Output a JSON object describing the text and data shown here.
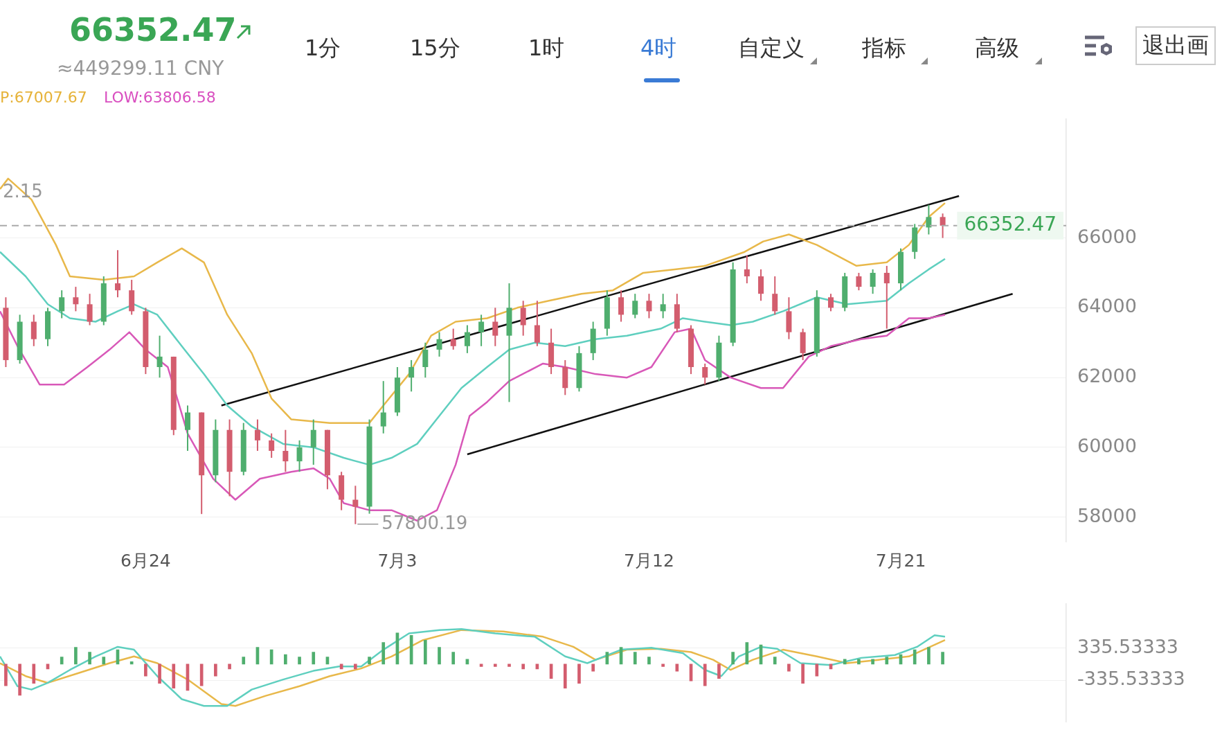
{
  "chart_data": [
    {
      "type": "candlestick",
      "title": "66352.47",
      "subtitle": "≈449299.11 CNY",
      "annotations": [
        "P:67007.67",
        "LOW:63806.58",
        "1分",
        "15分",
        "1时",
        "4时",
        "自定义",
        "指标",
        "高级",
        "退出画",
        {
          "text": "2.15",
          "x": "--06-18T19:00",
          "y": 67300
        },
        {
          "text": "57800.19",
          "x": "--07-01T12:00",
          "y": 57800.19
        }
      ],
      "x": [
        "--06-19T00:00",
        "--06-19T12:00",
        "--06-20T00:00",
        "--06-20T12:00",
        "--06-21T00:00",
        "--06-21T12:00",
        "--06-22T00:00",
        "--06-22T12:00",
        "--06-23T00:00",
        "--06-23T12:00",
        "--06-24T00:00",
        "--06-24T12:00",
        "--06-25T00:00",
        "--06-25T12:00",
        "--06-26T00:00",
        "--06-26T12:00",
        "--06-27T00:00",
        "--06-27T12:00",
        "--06-28T00:00",
        "--06-28T12:00",
        "--06-29T00:00",
        "--06-29T12:00",
        "--06-30T00:00",
        "--06-30T12:00",
        "--07-01T00:00",
        "--07-01T12:00",
        "--07-02T00:00",
        "--07-02T12:00",
        "--07-03T00:00",
        "--07-03T12:00",
        "--07-04T00:00",
        "--07-04T12:00",
        "--07-05T00:00",
        "--07-05T12:00",
        "--07-06T00:00",
        "--07-06T12:00",
        "--07-07T00:00",
        "--07-07T12:00",
        "--07-08T00:00",
        "--07-08T12:00",
        "--07-09T00:00",
        "--07-09T12:00",
        "--07-10T00:00",
        "--07-10T12:00",
        "--07-11T00:00",
        "--07-11T12:00",
        "--07-12T00:00",
        "--07-12T12:00",
        "--07-13T00:00",
        "--07-13T12:00",
        "--07-14T00:00",
        "--07-14T12:00",
        "--07-15T00:00",
        "--07-15T12:00",
        "--07-16T00:00",
        "--07-16T12:00",
        "--07-17T00:00",
        "--07-17T12:00",
        "--07-18T00:00",
        "--07-18T12:00",
        "--07-19T00:00",
        "--07-19T12:00",
        "--07-20T00:00",
        "--07-20T12:00",
        "--07-21T00:00",
        "--07-21T12:00",
        "--07-22T00:00",
        "--07-22T12:00"
      ],
      "ohlc": [
        [
          64000,
          64300,
          62300,
          62500
        ],
        [
          62500,
          63800,
          62400,
          63600
        ],
        [
          63600,
          63800,
          62900,
          63100
        ],
        [
          63100,
          64000,
          62900,
          63900
        ],
        [
          63900,
          64500,
          63700,
          64300
        ],
        [
          64300,
          64600,
          63900,
          64100
        ],
        [
          64100,
          64400,
          63500,
          63600
        ],
        [
          63600,
          64900,
          63500,
          64700
        ],
        [
          64700,
          65650,
          64300,
          64500
        ],
        [
          64500,
          64800,
          63800,
          63900
        ],
        [
          63900,
          64000,
          62100,
          62300
        ],
        [
          62300,
          63200,
          62000,
          62600
        ],
        [
          62600,
          62600,
          60350,
          60500
        ],
        [
          60500,
          61200,
          59900,
          61000
        ],
        [
          61000,
          61000,
          58090,
          59200
        ],
        [
          59200,
          60800,
          59000,
          60500
        ],
        [
          60500,
          60800,
          58600,
          59300
        ],
        [
          59300,
          60700,
          59200,
          60500
        ],
        [
          60500,
          60800,
          59900,
          60200
        ],
        [
          60200,
          60400,
          59700,
          59900
        ],
        [
          59900,
          60500,
          59300,
          59600
        ],
        [
          59600,
          60200,
          59300,
          60000
        ],
        [
          60000,
          60800,
          59500,
          60500
        ],
        [
          60500,
          60500,
          58800,
          59200
        ],
        [
          59200,
          59300,
          58200,
          58500
        ],
        [
          58500,
          58900,
          57800.19,
          58300
        ],
        [
          58300,
          60800,
          58100,
          60600
        ],
        [
          60600,
          61900,
          60400,
          61000
        ],
        [
          61000,
          62300,
          60900,
          62000
        ],
        [
          62000,
          62500,
          61600,
          62300
        ],
        [
          62300,
          63000,
          62000,
          62800
        ],
        [
          62800,
          63300,
          62600,
          63100
        ],
        [
          63100,
          63400,
          62800,
          62900
        ],
        [
          62900,
          63500,
          62700,
          63300
        ],
        [
          63300,
          63800,
          62900,
          63600
        ],
        [
          63600,
          64000,
          62900,
          63200
        ],
        [
          63200,
          64700,
          61300,
          64000
        ],
        [
          64000,
          64200,
          63200,
          63500
        ],
        [
          63500,
          64200,
          62900,
          63000
        ],
        [
          63000,
          63400,
          62100,
          62300
        ],
        [
          62300,
          62500,
          61500,
          61700
        ],
        [
          61700,
          62900,
          61600,
          62700
        ],
        [
          62700,
          63600,
          62500,
          63400
        ],
        [
          63400,
          64500,
          63200,
          64300
        ],
        [
          64300,
          64500,
          63600,
          63800
        ],
        [
          63800,
          64400,
          63700,
          64200
        ],
        [
          64200,
          64400,
          63700,
          63900
        ],
        [
          63900,
          64400,
          63700,
          64100
        ],
        [
          64100,
          64400,
          63300,
          63400
        ],
        [
          63400,
          63500,
          62100,
          62300
        ],
        [
          62300,
          62400,
          61800,
          62000
        ],
        [
          62000,
          63200,
          61900,
          63000
        ],
        [
          63000,
          65300,
          62900,
          65100
        ],
        [
          65100,
          65500,
          64700,
          64900
        ],
        [
          64900,
          65100,
          64200,
          64400
        ],
        [
          64400,
          64900,
          63800,
          63900
        ],
        [
          63900,
          64300,
          63100,
          63300
        ],
        [
          63300,
          63400,
          62500,
          62700
        ],
        [
          62700,
          64500,
          62600,
          64300
        ],
        [
          64300,
          64400,
          63900,
          64000
        ],
        [
          64000,
          65000,
          63900,
          64900
        ],
        [
          64900,
          65000,
          64500,
          64600
        ],
        [
          64600,
          65100,
          64400,
          65000
        ],
        [
          65000,
          65200,
          63400,
          64700
        ],
        [
          64700,
          65700,
          64500,
          65600
        ],
        [
          65600,
          66400,
          65400,
          66300
        ],
        [
          66300,
          66950,
          66100,
          66600
        ],
        [
          66600,
          66700,
          66000,
          66352.47
        ]
      ],
      "colors": [
        "#d35d6e",
        "#4fae6e",
        "#d35d6e",
        "#4fae6e",
        "#4fae6e",
        "#d35d6e",
        "#d35d6e",
        "#4fae6e",
        "#d35d6e",
        "#d35d6e",
        "#d35d6e",
        "#4fae6e",
        "#d35d6e",
        "#4fae6e",
        "#d35d6e",
        "#4fae6e",
        "#d35d6e",
        "#4fae6e",
        "#d35d6e",
        "#d35d6e",
        "#d35d6e",
        "#4fae6e",
        "#4fae6e",
        "#d35d6e",
        "#d35d6e",
        "#d35d6e",
        "#4fae6e",
        "#4fae6e",
        "#4fae6e",
        "#4fae6e",
        "#4fae6e",
        "#4fae6e",
        "#d35d6e",
        "#4fae6e",
        "#4fae6e",
        "#d35d6e",
        "#4fae6e",
        "#d35d6e",
        "#d35d6e",
        "#d35d6e",
        "#d35d6e",
        "#4fae6e",
        "#4fae6e",
        "#4fae6e",
        "#d35d6e",
        "#4fae6e",
        "#d35d6e",
        "#4fae6e",
        "#d35d6e",
        "#d35d6e",
        "#d35d6e",
        "#4fae6e",
        "#4fae6e",
        "#d35d6e",
        "#d35d6e",
        "#d35d6e",
        "#d35d6e",
        "#d35d6e",
        "#4fae6e",
        "#d35d6e",
        "#4fae6e",
        "#d35d6e",
        "#4fae6e",
        "#d35d6e",
        "#4fae6e",
        "#4fae6e",
        "#4fae6e",
        "#d35d6e"
      ],
      "series": [
        {
          "type": "line",
          "color": "#e8b84a",
          "x": [
            "--06-18T19:00",
            "--06-19T02:00",
            "--06-19T22:00",
            "--06-20T19:00",
            "--06-21T07:00",
            "--06-22T12:00",
            "--06-23T14:00",
            "--06-24T10:00",
            "--06-25T07:00",
            "--06-26T02:00",
            "--06-26T22:00",
            "--06-27T19:00",
            "--06-28T12:00",
            "--06-29T05:00",
            "--06-30T14:00",
            "--07-02T00:00",
            "--07-02T12:00",
            "--07-03T10:00",
            "--07-04T05:00",
            "--07-05T02:00",
            "--07-06T05:00",
            "--07-07T07:00",
            "--07-08T10:00",
            "--07-09T14:00",
            "--07-10T17:00",
            "--07-11T19:00",
            "--07-12T22:00",
            "--07-14T00:00",
            "--07-15T10:00",
            "--07-16T02:00",
            "--07-17T00:00",
            "--07-18T00:00",
            "--07-19T10:00",
            "--07-20T12:00",
            "--07-21T07:00",
            "--07-22T00:00",
            "--07-22T14:00"
          ],
          "values": [
            67400,
            67700,
            67100,
            65800,
            64900,
            64800,
            64900,
            65300,
            65700,
            65300,
            63800,
            62700,
            61400,
            60800,
            60700,
            60700,
            61200,
            62100,
            63200,
            63600,
            63700,
            64000,
            64200,
            64400,
            64500,
            65000,
            65100,
            65200,
            65600,
            65900,
            66100,
            65800,
            65200,
            65300,
            65800,
            66600,
            67000
          ]
        },
        {
          "type": "line",
          "color": "#5fcfbf",
          "x": [
            "--06-18T19:00",
            "--06-19T17:00",
            "--06-20T12:00",
            "--06-21T07:00",
            "--06-22T05:00",
            "--06-23T00:00",
            "--06-23T14:00",
            "--06-24T10:00",
            "--06-25T07:00",
            "--06-26T02:00",
            "--06-26T22:00",
            "--06-27T19:00",
            "--06-28T22:00",
            "--06-30T00:00",
            "--07-01T02:00",
            "--07-02T00:00",
            "--07-02T19:00",
            "--07-03T17:00",
            "--07-04T12:00",
            "--07-05T07:00",
            "--07-06T05:00",
            "--07-07T00:00",
            "--07-07T22:00",
            "--07-09T00:00",
            "--07-10T02:00",
            "--07-11T05:00",
            "--07-12T10:00",
            "--07-13T05:00",
            "--07-14T00:00",
            "--07-14T22:00",
            "--07-15T17:00",
            "--07-16T19:00",
            "--07-18T00:00",
            "--07-19T02:00",
            "--07-20T12:00",
            "--07-21T07:00",
            "--07-22T00:00",
            "--07-22T14:00"
          ],
          "values": [
            65600,
            64900,
            64100,
            63700,
            63600,
            63900,
            64100,
            63800,
            62900,
            62100,
            61200,
            60600,
            60100,
            60000,
            59700,
            59500,
            59700,
            60100,
            60900,
            61700,
            62300,
            62800,
            63000,
            62900,
            63100,
            63200,
            63400,
            63700,
            63600,
            63500,
            63600,
            63900,
            64300,
            64100,
            64200,
            64700,
            65100,
            65400
          ]
        },
        {
          "type": "line",
          "color": "#d858b8",
          "x": [
            "--06-18T19:00",
            "--06-19T10:00",
            "--06-20T05:00",
            "--06-21T02:00",
            "--06-21T22:00",
            "--06-22T17:00",
            "--06-23T10:00",
            "--06-24T00:00",
            "--06-24T19:00",
            "--06-25T12:00",
            "--06-26T10:00",
            "--06-27T05:00",
            "--06-28T02:00",
            "--06-29T05:00",
            "--06-30T00:00",
            "--06-30T14:00",
            "--07-01T02:00",
            "--07-02T00:00",
            "--07-02T19:00",
            "--07-03T17:00",
            "--07-04T10:00",
            "--07-05T02:00",
            "--07-05T14:00",
            "--07-06T05:00",
            "--07-07T00:00",
            "--07-08T05:00",
            "--07-09T00:00",
            "--07-10T02:00",
            "--07-11T05:00",
            "--07-12T02:00",
            "--07-12T22:00",
            "--07-13T12:00",
            "--07-14T00:00",
            "--07-14T22:00",
            "--07-16T00:00",
            "--07-16T19:00",
            "--07-17T17:00",
            "--07-18T12:00",
            "--07-19T14:00",
            "--07-20T12:00",
            "--07-21T07:00",
            "--07-22T00:00",
            "--07-22T14:00"
          ],
          "values": [
            63900,
            62900,
            61800,
            61800,
            62300,
            62800,
            63300,
            62800,
            62300,
            60400,
            59100,
            58500,
            59100,
            59300,
            59400,
            59100,
            58400,
            58200,
            58200,
            57900,
            58200,
            59500,
            60900,
            61300,
            61900,
            62400,
            62300,
            62100,
            62000,
            62300,
            63300,
            63400,
            62500,
            62000,
            61700,
            61700,
            62600,
            62900,
            63100,
            63200,
            63700,
            63700,
            63800
          ]
        },
        {
          "type": "line",
          "color": "#111111",
          "x": [
            "--06-26T17:00",
            "--07-23T02:00"
          ],
          "values": [
            61200,
            67200
          ]
        },
        {
          "type": "line",
          "color": "#111111",
          "x": [
            "--07-05T12:00",
            "--07-25T00:00"
          ],
          "values": [
            59800,
            64400
          ]
        }
      ],
      "ref_lines": [
        {
          "axis": "y",
          "value": 66352.47,
          "label": "66352.47",
          "color": "#aaaaaa",
          "line_style": "dashed"
        }
      ],
      "xlim": [
        "--06-18T19:00",
        "--07-26T22:00"
      ],
      "ylim": [
        57300,
        69400
      ],
      "xticks": [
        {
          "value": "--06-24",
          "label": "6月24"
        },
        {
          "value": "--07-03",
          "label": "7月3"
        },
        {
          "value": "--07-12",
          "label": "7月12"
        },
        {
          "value": "--07-21",
          "label": "7月21"
        }
      ],
      "yticks": [
        58000,
        60000,
        62000,
        64000,
        66000
      ],
      "grid": "y"
    },
    {
      "type": "bar",
      "xlim": [
        "--06-18T19:00",
        "--07-26T22:00"
      ],
      "ylim": [
        -1210,
        1250
      ],
      "yticks": [
        {
          "value": 335.53333,
          "label": "335.53333"
        },
        {
          "value": -335.53333,
          "label": "-335.53333"
        }
      ],
      "grid": "y",
      "tick_labels": "y",
      "series": [
        {
          "type": "bar",
          "x": [
            "--06-19T00:00",
            "--06-19T12:00",
            "--06-20T00:00",
            "--06-20T12:00",
            "--06-21T00:00",
            "--06-21T12:00",
            "--06-22T00:00",
            "--06-22T12:00",
            "--06-23T00:00",
            "--06-23T12:00",
            "--06-24T00:00",
            "--06-24T12:00",
            "--06-25T00:00",
            "--06-25T12:00",
            "--06-26T00:00",
            "--06-26T12:00",
            "--06-27T00:00",
            "--06-27T12:00",
            "--06-28T00:00",
            "--06-28T12:00",
            "--06-29T00:00",
            "--06-29T12:00",
            "--06-30T00:00",
            "--06-30T12:00",
            "--07-01T00:00",
            "--07-01T12:00",
            "--07-02T00:00",
            "--07-02T12:00",
            "--07-03T00:00",
            "--07-03T12:00",
            "--07-04T00:00",
            "--07-04T12:00",
            "--07-05T00:00",
            "--07-05T12:00",
            "--07-06T00:00",
            "--07-06T12:00",
            "--07-07T00:00",
            "--07-07T12:00",
            "--07-08T00:00",
            "--07-08T12:00",
            "--07-09T00:00",
            "--07-09T12:00",
            "--07-10T00:00",
            "--07-10T12:00",
            "--07-11T00:00",
            "--07-11T12:00",
            "--07-12T00:00",
            "--07-12T12:00",
            "--07-13T00:00",
            "--07-13T12:00",
            "--07-14T00:00",
            "--07-14T12:00",
            "--07-15T00:00",
            "--07-15T12:00",
            "--07-16T00:00",
            "--07-16T12:00",
            "--07-17T00:00",
            "--07-17T12:00",
            "--07-18T00:00",
            "--07-18T12:00",
            "--07-19T00:00",
            "--07-19T12:00",
            "--07-20T00:00",
            "--07-20T12:00",
            "--07-21T00:00",
            "--07-21T12:00",
            "--07-22T00:00",
            "--07-22T12:00"
          ],
          "values": [
            -450,
            -650,
            -400,
            -100,
            150,
            350,
            250,
            150,
            300,
            50,
            -250,
            -400,
            -500,
            -550,
            -450,
            -250,
            -100,
            150,
            350,
            300,
            200,
            150,
            250,
            150,
            -100,
            -100,
            150,
            450,
            650,
            600,
            500,
            350,
            250,
            100,
            -50,
            -50,
            -50,
            -100,
            -100,
            -300,
            -500,
            -400,
            -150,
            250,
            350,
            250,
            150,
            -50,
            -150,
            -350,
            -450,
            -300,
            250,
            450,
            400,
            150,
            -150,
            -400,
            -250,
            -100,
            100,
            100,
            100,
            150,
            200,
            300,
            350,
            250
          ],
          "colors": [
            "#d35d6e",
            "#d35d6e",
            "#d35d6e",
            "#d35d6e",
            "#4fae6e",
            "#4fae6e",
            "#4fae6e",
            "#4fae6e",
            "#4fae6e",
            "#4fae6e",
            "#d35d6e",
            "#d35d6e",
            "#d35d6e",
            "#d35d6e",
            "#d35d6e",
            "#d35d6e",
            "#d35d6e",
            "#4fae6e",
            "#4fae6e",
            "#4fae6e",
            "#4fae6e",
            "#4fae6e",
            "#4fae6e",
            "#4fae6e",
            "#d35d6e",
            "#d35d6e",
            "#4fae6e",
            "#4fae6e",
            "#4fae6e",
            "#4fae6e",
            "#4fae6e",
            "#4fae6e",
            "#4fae6e",
            "#4fae6e",
            "#d35d6e",
            "#d35d6e",
            "#d35d6e",
            "#d35d6e",
            "#d35d6e",
            "#d35d6e",
            "#d35d6e",
            "#d35d6e",
            "#d35d6e",
            "#4fae6e",
            "#4fae6e",
            "#4fae6e",
            "#4fae6e",
            "#d35d6e",
            "#d35d6e",
            "#d35d6e",
            "#d35d6e",
            "#d35d6e",
            "#4fae6e",
            "#4fae6e",
            "#4fae6e",
            "#4fae6e",
            "#d35d6e",
            "#d35d6e",
            "#d35d6e",
            "#d35d6e",
            "#4fae6e",
            "#4fae6e",
            "#4fae6e",
            "#4fae6e",
            "#4fae6e",
            "#4fae6e",
            "#4fae6e",
            "#4fae6e"
          ]
        },
        {
          "type": "line",
          "color": "#5fcfbf",
          "x": [
            "--06-18T19:00",
            "--06-19T10:00",
            "--06-19T22:00",
            "--06-20T12:00",
            "--06-21T07:00",
            "--06-22T05:00",
            "--06-23T00:00",
            "--06-23T14:00",
            "--06-24T10:00",
            "--06-25T07:00",
            "--06-26T02:00",
            "--06-26T22:00",
            "--06-27T19:00",
            "--06-28T22:00",
            "--06-30T00:00",
            "--06-30T22:00",
            "--07-01T17:00",
            "--07-02T12:00",
            "--07-03T10:00",
            "--07-04T12:00",
            "--07-05T07:00",
            "--07-06T12:00",
            "--07-07T22:00",
            "--07-09T00:00",
            "--07-09T19:00",
            "--07-11T00:00",
            "--07-12T02:00",
            "--07-13T05:00",
            "--07-14T00:00",
            "--07-14T14:00",
            "--07-15T05:00",
            "--07-16T00:00",
            "--07-16T14:00",
            "--07-17T10:00",
            "--07-18T12:00",
            "--07-19T14:00",
            "--07-20T19:00",
            "--07-21T14:00",
            "--07-22T05:00",
            "--07-22T14:00"
          ],
          "values": [
            160,
            -460,
            -530,
            -390,
            -120,
            160,
            360,
            300,
            -250,
            -730,
            -870,
            -870,
            -530,
            -320,
            -140,
            -50,
            -50,
            300,
            640,
            710,
            730,
            640,
            570,
            160,
            20,
            300,
            340,
            230,
            -120,
            -250,
            160,
            360,
            320,
            20,
            -20,
            130,
            190,
            360,
            600,
            570
          ]
        },
        {
          "type": "line",
          "color": "#e8b84a",
          "x": [
            "--06-18T19:00",
            "--06-19T17:00",
            "--06-20T12:00",
            "--06-21T14:00",
            "--06-22T17:00",
            "--06-23T14:00",
            "--06-24T10:00",
            "--06-25T12:00",
            "--06-26T17:00",
            "--06-27T05:00",
            "--06-28T07:00",
            "--06-29T12:00",
            "--06-30T14:00",
            "--07-01T17:00",
            "--07-02T19:00",
            "--07-03T22:00",
            "--07-05T07:00",
            "--07-06T19:00",
            "--07-08T05:00",
            "--07-09T07:00",
            "--07-10T02:00",
            "--07-11T05:00",
            "--07-12T10:00",
            "--07-13T12:00",
            "--07-14T07:00",
            "--07-14T22:00",
            "--07-15T17:00",
            "--07-16T19:00",
            "--07-18T00:00",
            "--07-19T02:00",
            "--07-20T05:00",
            "--07-21T07:00",
            "--07-22T14:00"
          ],
          "values": [
            20,
            -250,
            -390,
            -190,
            20,
            160,
            20,
            -320,
            -830,
            -870,
            -660,
            -460,
            -250,
            -90,
            160,
            500,
            710,
            680,
            570,
            360,
            90,
            300,
            320,
            250,
            90,
            -120,
            90,
            300,
            160,
            20,
            90,
            160,
            500
          ]
        }
      ]
    }
  ]
}
